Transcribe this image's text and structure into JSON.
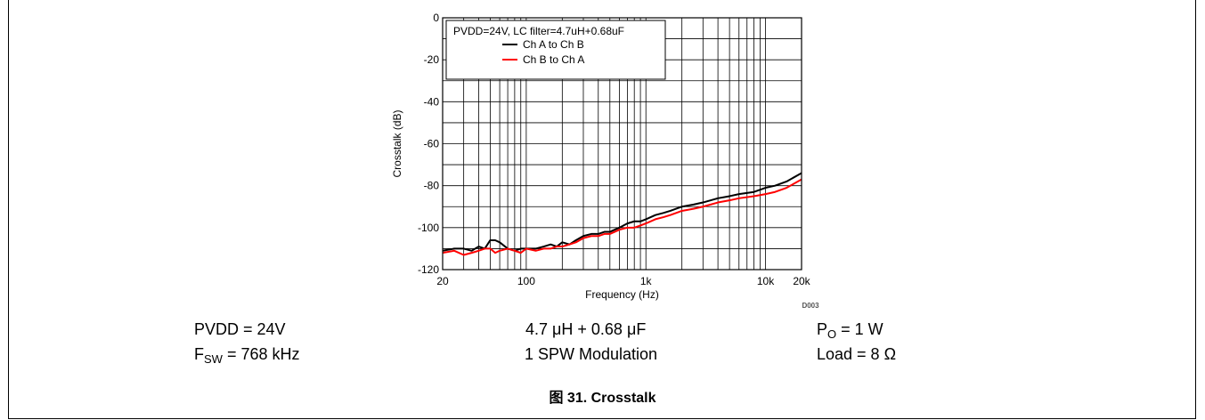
{
  "chart_data": {
    "type": "line",
    "xscale": "log",
    "xlim": [
      20,
      20000
    ],
    "ylim": [
      -120,
      0
    ],
    "xlabel": "Frequency (Hz)",
    "ylabel": "Crosstalk (dB)",
    "xticks": [
      {
        "value": 20,
        "label": "20"
      },
      {
        "value": 100,
        "label": "100"
      },
      {
        "value": 1000,
        "label": "1k"
      },
      {
        "value": 10000,
        "label": "10k"
      },
      {
        "value": 20000,
        "label": "20k"
      }
    ],
    "yticks": [
      0,
      -20,
      -40,
      -60,
      -80,
      -100,
      -120
    ],
    "grid": true,
    "legend_title": "PVDD=24V, LC filter=4.7uH+0.68uF",
    "legend_position": "top-left",
    "series": [
      {
        "name": "Ch A to Ch B",
        "color": "#000000",
        "x": [
          20,
          25,
          30,
          35,
          40,
          45,
          50,
          55,
          60,
          70,
          80,
          90,
          100,
          120,
          140,
          160,
          180,
          200,
          230,
          260,
          300,
          350,
          400,
          450,
          500,
          600,
          700,
          800,
          900,
          1000,
          1200,
          1400,
          1600,
          2000,
          2500,
          3000,
          4000,
          5000,
          6000,
          8000,
          10000,
          12000,
          15000,
          20000
        ],
        "y": [
          -111,
          -110,
          -110,
          -111,
          -109,
          -110,
          -106,
          -106,
          -107,
          -110,
          -111,
          -110,
          -110,
          -110,
          -109,
          -108,
          -109,
          -107,
          -108,
          -106,
          -104,
          -103,
          -103,
          -102,
          -102,
          -100,
          -98,
          -97,
          -97,
          -96,
          -94,
          -93,
          -92,
          -90,
          -89,
          -88,
          -86,
          -85,
          -84,
          -83,
          -81,
          -80,
          -78,
          -74
        ]
      },
      {
        "name": "Ch B to Ch A",
        "color": "#ff0000",
        "x": [
          20,
          25,
          30,
          35,
          40,
          45,
          50,
          55,
          60,
          70,
          80,
          90,
          100,
          120,
          140,
          160,
          180,
          200,
          230,
          260,
          300,
          350,
          400,
          450,
          500,
          600,
          700,
          800,
          900,
          1000,
          1200,
          1400,
          1600,
          2000,
          2500,
          3000,
          4000,
          5000,
          6000,
          8000,
          10000,
          12000,
          15000,
          20000
        ],
        "y": [
          -112,
          -111,
          -113,
          -112,
          -111,
          -110,
          -110,
          -112,
          -111,
          -110,
          -111,
          -112,
          -110,
          -111,
          -110,
          -110,
          -109,
          -109,
          -108,
          -107,
          -105,
          -104,
          -104,
          -103,
          -103,
          -101,
          -100,
          -100,
          -99,
          -98,
          -96,
          -95,
          -94,
          -92,
          -91,
          -90,
          -88,
          -87,
          -86,
          -85,
          -84,
          -83,
          -81,
          -77
        ]
      }
    ],
    "source_id": "D003"
  },
  "conditions": {
    "pvdd": "PVDD = 24V",
    "fsw_prefix": "F",
    "fsw_sub": "SW",
    "fsw_value": " = 768 kHz",
    "filter": "4.7 μH + 0.68 μF",
    "modulation": "1 SPW Modulation",
    "po_prefix": "P",
    "po_sub": "O",
    "po_value": " = 1 W",
    "load": "Load = 8 Ω"
  },
  "caption": "图 31. Crosstalk"
}
